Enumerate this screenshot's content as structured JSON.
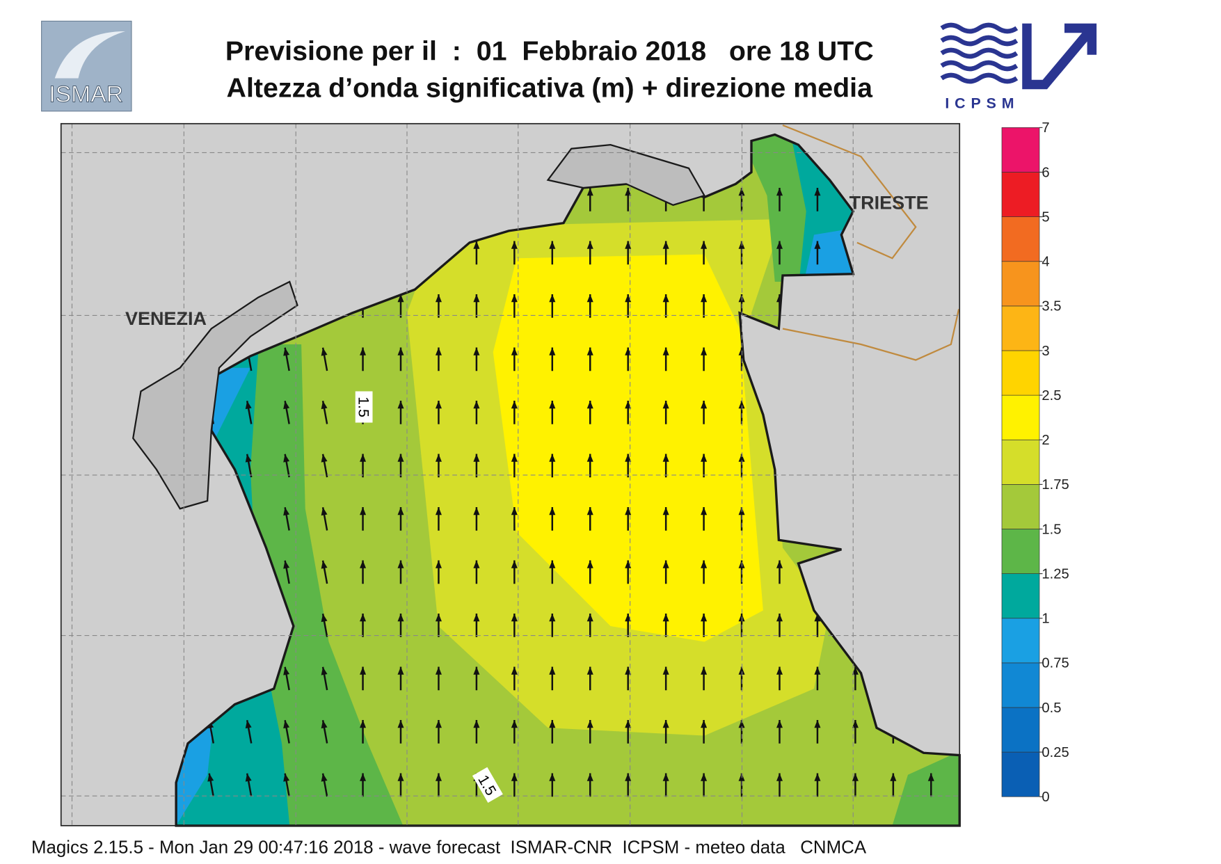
{
  "header": {
    "title": "Previsione per il  :  01  Febbraio 2018   ore 18 UTC",
    "subtitle": "Altezza d’onda significativa (m) + direzione media",
    "left_logo": "ISMAR",
    "right_logo": "ICPSM"
  },
  "map": {
    "labels": [
      "VENEZIA",
      "TRIESTE"
    ],
    "contour_labels": [
      "1.5",
      "1.5"
    ]
  },
  "colorbar": {
    "ticks": [
      0,
      0.25,
      0.5,
      0.75,
      1,
      1.25,
      1.5,
      1.75,
      2,
      2.5,
      3,
      3.5,
      4,
      5,
      6,
      7
    ],
    "colors": [
      "#0a5fb4",
      "#0b72c4",
      "#1188d4",
      "#1aa0e3",
      "#00a99d",
      "#5db648",
      "#a4c93a",
      "#d5de2a",
      "#fff200",
      "#ffd400",
      "#fdb515",
      "#f7941d",
      "#f26b21",
      "#ed1c24",
      "#ec1469"
    ]
  },
  "footer": "Magics 2.15.5 - Mon Jan 29 00:47:16 2018 - wave forecast  ISMAR-CNR  ICPSM - meteo data   CNMCA"
}
